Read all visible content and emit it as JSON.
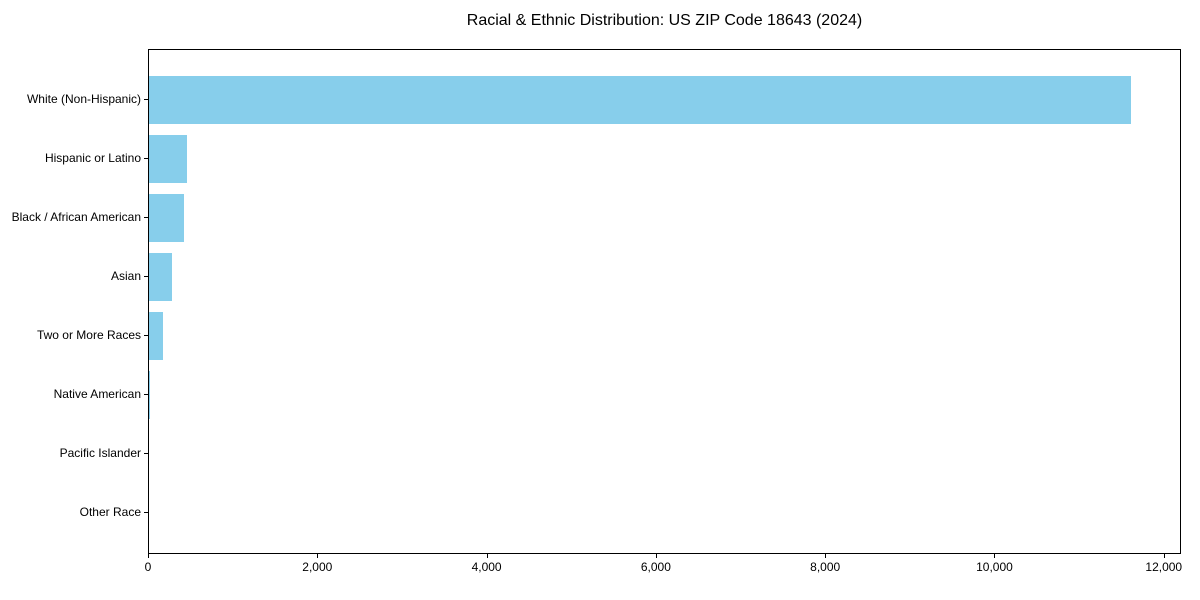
{
  "chart_data": {
    "type": "bar",
    "orientation": "horizontal",
    "title": "Racial & Ethnic Distribution: US ZIP Code 18643 (2024)",
    "categories": [
      "White (Non-Hispanic)",
      "Hispanic or Latino",
      "Black / African American",
      "Asian",
      "Two or More Races",
      "Native American",
      "Pacific Islander",
      "Other Race"
    ],
    "values": [
      11600,
      450,
      415,
      270,
      160,
      15,
      0,
      0
    ],
    "xlabel": "",
    "ylabel": "",
    "xlim": [
      0,
      12180
    ],
    "xticks": [
      0,
      2000,
      4000,
      6000,
      8000,
      10000,
      12000
    ],
    "xtick_labels": [
      "0",
      "2,000",
      "4,000",
      "6,000",
      "8,000",
      "10,000",
      "12,000"
    ],
    "bar_color": "#87CEEB",
    "axis_color": "#000000",
    "text_color": "#000000",
    "background_color": "#FFFFFF",
    "legend_position": "none",
    "grid": false
  }
}
